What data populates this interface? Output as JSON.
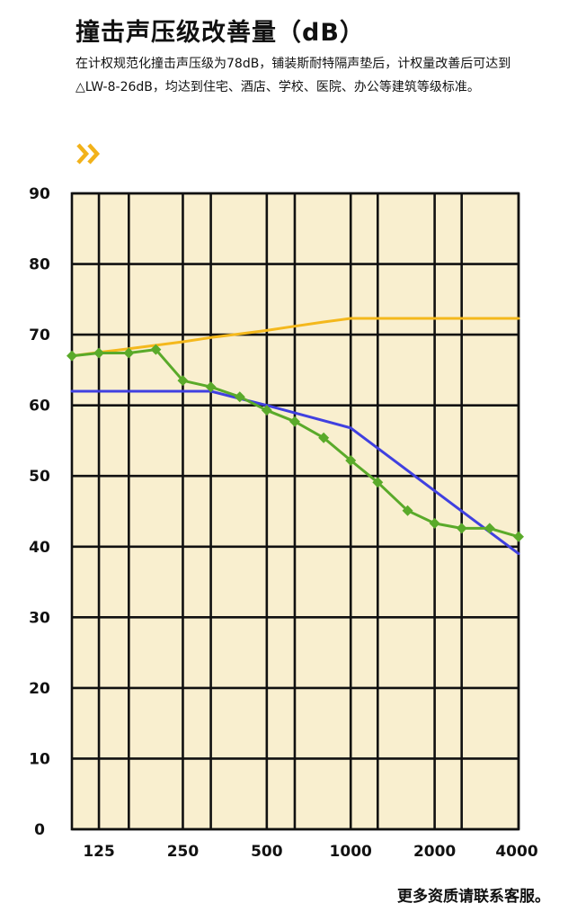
{
  "header": {
    "title": "撞击声压级改善量（dB）",
    "description": "在计权规范化撞击声压级为78dB，铺装斯耐特隔声垫后，计权量改善后可达到△LW-8-26dB，均达到住宅、酒店、学校、医院、办公等建筑等级标准。"
  },
  "icons": {
    "chevron": "double-chevron-right-icon",
    "chevron_color": "#f2b21a"
  },
  "footer": {
    "text": "更多资质请联系客服。"
  },
  "chart_data": {
    "type": "line",
    "x_scale": "log",
    "x_ticks": [
      125,
      250,
      500,
      1000,
      2000,
      4000
    ],
    "x_tick_labels": [
      "125",
      "250",
      "500",
      "1000",
      "2000",
      "4000"
    ],
    "ylim": [
      0,
      90
    ],
    "y_ticks": [
      0,
      10,
      20,
      30,
      40,
      50,
      60,
      70,
      80,
      90
    ],
    "xlim": [
      100,
      4000
    ],
    "grid": true,
    "background": "#f9efcf",
    "series": [
      {
        "color": "#f4b81c",
        "x": [
          100,
          125,
          160,
          200,
          250,
          315,
          400,
          500,
          630,
          800,
          1000,
          1250,
          1600,
          2000,
          2500,
          3150,
          4000
        ],
        "y": [
          67,
          67.5,
          68,
          68.5,
          69,
          69.6,
          70.1,
          70.6,
          71.2,
          71.8,
          72.3,
          72.3,
          72.3,
          72.3,
          72.3,
          72.3,
          72.3
        ]
      },
      {
        "color": "#4040e0",
        "x": [
          100,
          315,
          500,
          1000,
          4000
        ],
        "y": [
          62,
          62,
          60,
          56.8,
          39
        ]
      },
      {
        "color": "#5aaa2a",
        "markers": true,
        "x": [
          100,
          125,
          160,
          200,
          250,
          315,
          400,
          500,
          630,
          800,
          1000,
          1250,
          1600,
          2000,
          2500,
          3150,
          4000
        ],
        "y": [
          67,
          67.4,
          67.4,
          67.9,
          63.5,
          62.6,
          61.2,
          59.3,
          57.7,
          55.4,
          52.2,
          49.1,
          45.1,
          43.3,
          42.6,
          42.6,
          41.4
        ]
      }
    ]
  }
}
